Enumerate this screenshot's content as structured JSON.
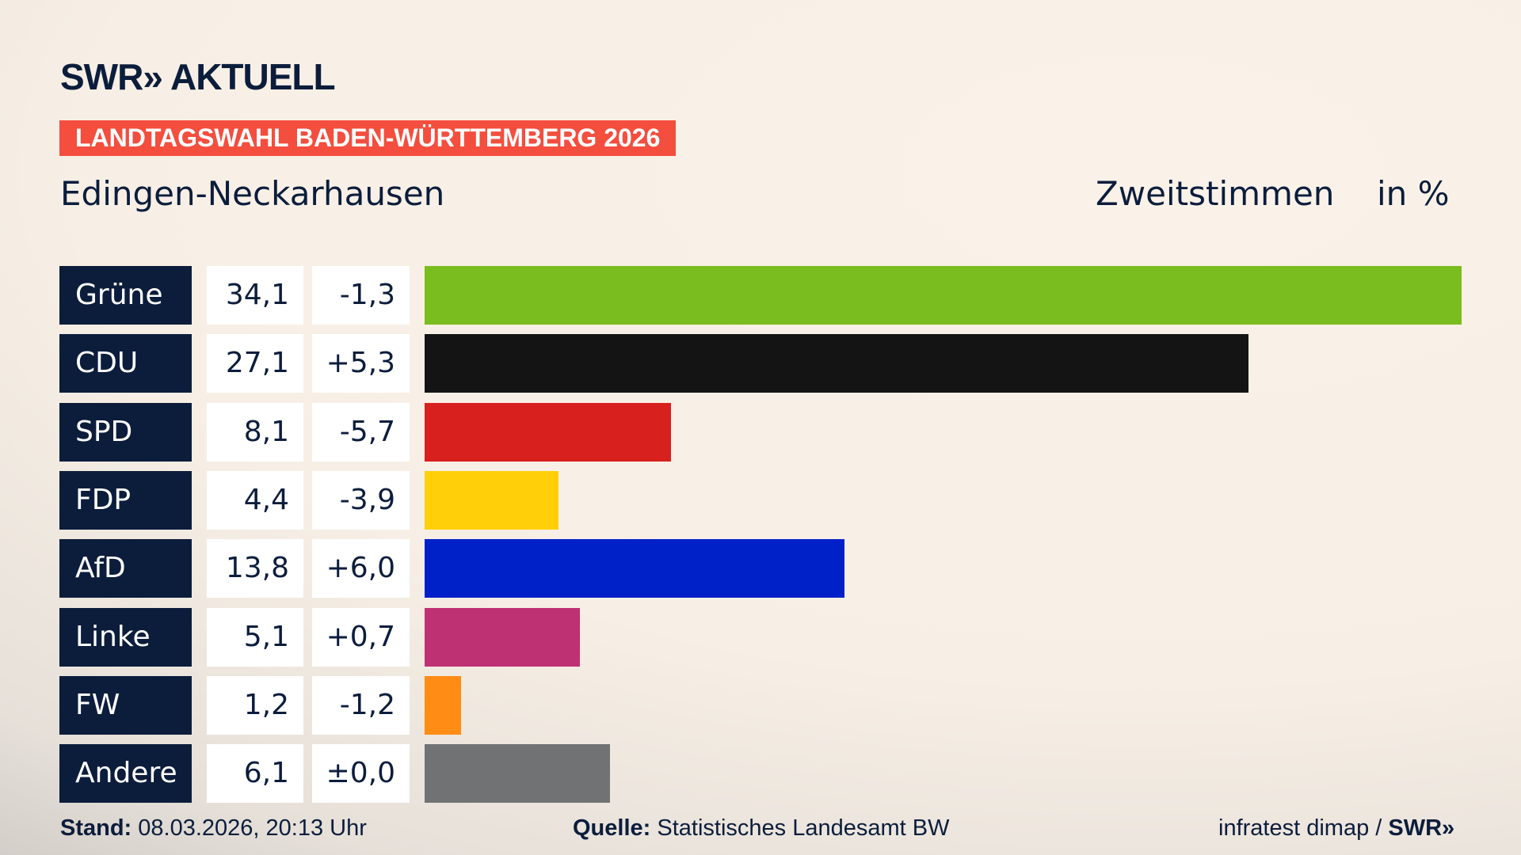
{
  "header": {
    "logo": "SWR» AKTUELL",
    "banner": "LANDTAGSWAHL BADEN-WÜRTTEMBERG 2026",
    "location": "Edingen-Neckarhausen",
    "metric": "Zweitstimmen",
    "unit": "in %"
  },
  "chart_data": {
    "type": "bar",
    "orientation": "horizontal",
    "xlim": [
      0,
      34.1
    ],
    "categories": [
      "Grüne",
      "CDU",
      "SPD",
      "FDP",
      "AfD",
      "Linke",
      "FW",
      "Andere"
    ],
    "values": [
      34.1,
      27.1,
      8.1,
      4.4,
      13.8,
      5.1,
      1.2,
      6.1
    ],
    "value_labels": [
      "34,1",
      "27,1",
      "8,1",
      "4,4",
      "13,8",
      "5,1",
      "1,2",
      "6,1"
    ],
    "diff_labels": [
      "-1,3",
      "+5,3",
      "-5,7",
      "-3,9",
      "+6,0",
      "+0,7",
      "-1,2",
      "±0,0"
    ],
    "colors": [
      "#7abd1e",
      "#141414",
      "#d8201e",
      "#ffcf0a",
      "#0020c8",
      "#be3173",
      "#ff8c14",
      "#717274"
    ]
  },
  "footer": {
    "stand_label": "Stand:",
    "stand_value": "08.03.2026, 20:13 Uhr",
    "source_label": "Quelle:",
    "source_value": "Statistisches Landesamt BW",
    "credit": "infratest dimap /",
    "credit_logo": "SWR»"
  }
}
